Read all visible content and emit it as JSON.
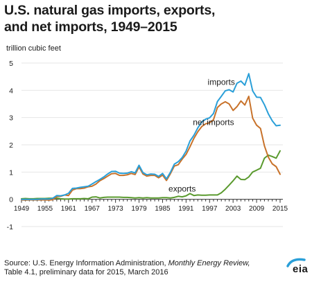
{
  "title_line1": "U.S. natural gas imports, exports,",
  "title_line2": "and net imports, 1949–2015",
  "source": {
    "prefix": "Source: U.S. Energy Information Administration, ",
    "publication": "Monthly Energy Review,",
    "line2": "Table 4.1, preliminary data for 2015, March 2016"
  },
  "logo_text": "eia",
  "colors": {
    "imports": "#2a9fd8",
    "net_imports": "#c8722a",
    "exports": "#5a9a2e",
    "grid": "#e6e6e6",
    "axis": "#333333",
    "logo_arc": "#2a9fd8"
  },
  "chart_data": {
    "type": "line",
    "ylabel": "trillion cubic feet",
    "ylim": [
      -1,
      5
    ],
    "yticks": [
      "-1",
      "0",
      "1",
      "2",
      "3",
      "4",
      "5"
    ],
    "xlim": [
      1949,
      2015
    ],
    "xticks": [
      "1949",
      "1955",
      "1961",
      "1967",
      "1973",
      "1979",
      "1985",
      "1991",
      "1997",
      "2003",
      "2009",
      "2015"
    ],
    "grid": true,
    "series": [
      {
        "name": "imports",
        "color_key": "imports",
        "label_year": 2000,
        "label_value": 4.2,
        "x": [
          1949,
          1950,
          1951,
          1952,
          1953,
          1954,
          1955,
          1956,
          1957,
          1958,
          1959,
          1960,
          1961,
          1962,
          1963,
          1964,
          1965,
          1966,
          1967,
          1968,
          1969,
          1970,
          1971,
          1972,
          1973,
          1974,
          1975,
          1976,
          1977,
          1978,
          1979,
          1980,
          1981,
          1982,
          1983,
          1984,
          1985,
          1986,
          1987,
          1988,
          1989,
          1990,
          1991,
          1992,
          1993,
          1994,
          1995,
          1996,
          1997,
          1998,
          1999,
          2000,
          2001,
          2002,
          2003,
          2004,
          2005,
          2006,
          2007,
          2008,
          2009,
          2010,
          2011,
          2012,
          2013,
          2014,
          2015
        ],
        "values": [
          0,
          0,
          0,
          0,
          0,
          0.01,
          0.01,
          0.01,
          0.04,
          0.14,
          0.13,
          0.16,
          0.22,
          0.4,
          0.41,
          0.44,
          0.46,
          0.48,
          0.56,
          0.65,
          0.73,
          0.82,
          0.93,
          1.02,
          1.03,
          0.96,
          0.95,
          0.96,
          1.01,
          0.97,
          1.25,
          0.98,
          0.9,
          0.93,
          0.92,
          0.84,
          0.95,
          0.75,
          0.99,
          1.29,
          1.38,
          1.53,
          1.77,
          2.14,
          2.35,
          2.62,
          2.84,
          2.94,
          2.99,
          3.15,
          3.59,
          3.78,
          3.98,
          4.02,
          3.94,
          4.26,
          4.34,
          4.19,
          4.61,
          3.98,
          3.75,
          3.74,
          3.47,
          3.14,
          2.88,
          2.7,
          2.72
        ]
      },
      {
        "name": "net imports",
        "color_key": "net_imports",
        "label_year": 1998,
        "label_value": 2.72,
        "x": [
          1949,
          1950,
          1951,
          1952,
          1953,
          1954,
          1955,
          1956,
          1957,
          1958,
          1959,
          1960,
          1961,
          1962,
          1963,
          1964,
          1965,
          1966,
          1967,
          1968,
          1969,
          1970,
          1971,
          1972,
          1973,
          1974,
          1975,
          1976,
          1977,
          1978,
          1979,
          1980,
          1981,
          1982,
          1983,
          1984,
          1985,
          1986,
          1987,
          1988,
          1989,
          1990,
          1991,
          1992,
          1993,
          1994,
          1995,
          1996,
          1997,
          1998,
          1999,
          2000,
          2001,
          2002,
          2003,
          2004,
          2005,
          2006,
          2007,
          2008,
          2009,
          2010,
          2011,
          2012,
          2013,
          2014,
          2015
        ],
        "values": [
          -0.02,
          -0.03,
          -0.02,
          -0.02,
          -0.02,
          -0.02,
          -0.02,
          -0.03,
          -0.01,
          0.1,
          0.11,
          0.16,
          0.14,
          0.34,
          0.39,
          0.39,
          0.41,
          0.46,
          0.48,
          0.56,
          0.68,
          0.76,
          0.85,
          0.94,
          0.95,
          0.88,
          0.88,
          0.9,
          0.95,
          0.91,
          1.19,
          0.93,
          0.85,
          0.88,
          0.88,
          0.79,
          0.89,
          0.69,
          0.94,
          1.22,
          1.27,
          1.47,
          1.65,
          1.93,
          2.24,
          2.48,
          2.67,
          2.77,
          2.81,
          2.92,
          3.37,
          3.5,
          3.58,
          3.5,
          3.26,
          3.4,
          3.61,
          3.46,
          3.78,
          2.98,
          2.72,
          2.6,
          1.96,
          1.55,
          1.3,
          1.2,
          0.92
        ]
      },
      {
        "name": "exports",
        "color_key": "exports",
        "label_year": 1990,
        "label_value": 0.28,
        "x": [
          1949,
          1950,
          1951,
          1952,
          1953,
          1954,
          1955,
          1956,
          1957,
          1958,
          1959,
          1960,
          1961,
          1962,
          1963,
          1964,
          1965,
          1966,
          1967,
          1968,
          1969,
          1970,
          1971,
          1972,
          1973,
          1974,
          1975,
          1976,
          1977,
          1978,
          1979,
          1980,
          1981,
          1982,
          1983,
          1984,
          1985,
          1986,
          1987,
          1988,
          1989,
          1990,
          1991,
          1992,
          1993,
          1994,
          1995,
          1996,
          1997,
          1998,
          1999,
          2000,
          2001,
          2002,
          2003,
          2004,
          2005,
          2006,
          2007,
          2008,
          2009,
          2010,
          2011,
          2012,
          2013,
          2014,
          2015
        ],
        "values": [
          0.02,
          0.03,
          0.02,
          0.02,
          0.03,
          0.03,
          0.03,
          0.04,
          0.04,
          0.04,
          0.02,
          0.01,
          0.01,
          0.02,
          0.02,
          0.02,
          0.03,
          0.02,
          0.08,
          0.09,
          0.05,
          0.07,
          0.08,
          0.08,
          0.08,
          0.08,
          0.07,
          0.07,
          0.06,
          0.05,
          0.06,
          0.05,
          0.06,
          0.05,
          0.05,
          0.05,
          0.06,
          0.06,
          0.05,
          0.07,
          0.11,
          0.09,
          0.13,
          0.21,
          0.14,
          0.16,
          0.15,
          0.15,
          0.16,
          0.16,
          0.16,
          0.24,
          0.37,
          0.52,
          0.68,
          0.85,
          0.73,
          0.72,
          0.82,
          1.0,
          1.07,
          1.14,
          1.51,
          1.62,
          1.57,
          1.51,
          1.78
        ]
      }
    ]
  }
}
